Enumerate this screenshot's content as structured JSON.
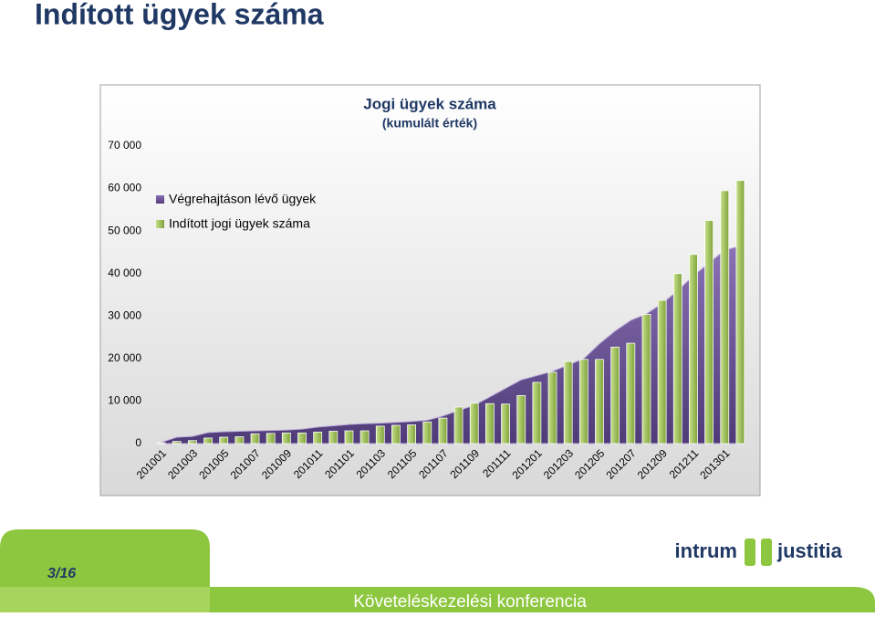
{
  "slide": {
    "title": "Indított ügyek száma",
    "page": "3/16",
    "footer": "Követeléskezelési konferencia",
    "logo_left": "intrum",
    "logo_right": "justitia"
  },
  "chart_data": {
    "type": "bar",
    "title": "Jogi ügyek száma",
    "subtitle": "(kumulált érték)",
    "categories": [
      "201001",
      null,
      "201003",
      null,
      "201005",
      null,
      "201007",
      null,
      "201009",
      null,
      "201011",
      null,
      "201101",
      null,
      "201103",
      null,
      "201105",
      null,
      "201107",
      null,
      "201109",
      null,
      "201111",
      null,
      "201201",
      null,
      "201203",
      null,
      "201205",
      null,
      "201207",
      null,
      "201209",
      null,
      "201211",
      null,
      "201301",
      null
    ],
    "series": [
      {
        "name": "Végrehajtáson lévő ügyek",
        "type": "area",
        "color": "#6a5394",
        "values": [
          300,
          1500,
          1700,
          2600,
          2800,
          2900,
          3000,
          3100,
          3200,
          3400,
          3900,
          4200,
          4500,
          4700,
          4800,
          5000,
          5200,
          5500,
          6500,
          7800,
          9000,
          11000,
          13000,
          15000,
          16000,
          17000,
          18500,
          20000,
          23500,
          26500,
          29000,
          30500,
          33000,
          36000,
          39500,
          42500,
          45500,
          46500
        ]
      },
      {
        "name": "Indított jogi ügyek száma",
        "type": "bar",
        "color": "#9bbb59",
        "values": [
          200,
          500,
          700,
          1300,
          1500,
          1600,
          2300,
          2400,
          2500,
          2500,
          2700,
          2900,
          3000,
          3000,
          4100,
          4300,
          4400,
          5100,
          6000,
          8600,
          9500,
          9400,
          9300,
          11300,
          14400,
          16800,
          19300,
          19800,
          19800,
          22700,
          23600,
          30400,
          33700,
          40000,
          44500,
          52500,
          59500,
          61900
        ]
      }
    ],
    "ylim": [
      0,
      70000
    ],
    "yticks": [
      0,
      {
        "value": 10000,
        "label": "10 000"
      },
      {
        "value": 20000,
        "label": "20 000"
      },
      {
        "value": 30000,
        "label": "30 000"
      },
      {
        "value": 40000,
        "label": "40 000"
      },
      {
        "value": 50000,
        "label": "50 000"
      },
      {
        "value": 60000,
        "label": "60 000"
      },
      {
        "value": 70000,
        "label": "70 000"
      }
    ],
    "grid": false,
    "legend": "upper left"
  }
}
